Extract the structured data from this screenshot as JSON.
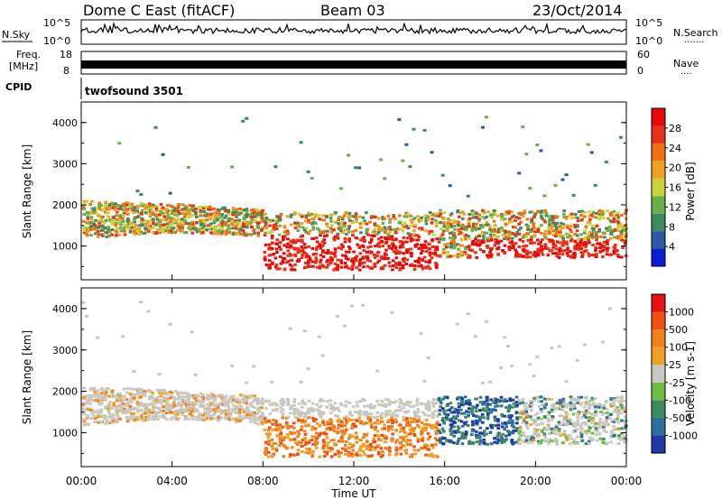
{
  "header": {
    "title": "Dome C East (fitACF)",
    "beam": "Beam 03",
    "date": "23/Oct/2014"
  },
  "status_panels": {
    "nsky_label": "N.Sky",
    "nsearch_label": "N.Search",
    "nsearch_dots": "·······",
    "noise_ticks": [
      "10^5",
      "10^0"
    ],
    "freq_label_1": "Freq.",
    "freq_label_2": "[MHz]",
    "freq_ticks": [
      "18",
      "8"
    ],
    "nave_label": "Nave",
    "nave_dots": "····",
    "nave_ticks": [
      "60",
      "0"
    ],
    "cpid_label": "CPID",
    "cpid_value": "twofsound 3501"
  },
  "chart_data": [
    {
      "type": "heatmap",
      "name": "power",
      "ylabel": "Slant Range [km]",
      "y_ticks": [
        "1000",
        "2000",
        "3000",
        "4000"
      ],
      "colorbar_label": "Power [dB]",
      "colorbar_ticks": [
        "28",
        "24",
        "20",
        "16",
        "12",
        "8",
        "4"
      ],
      "colors": [
        "#0a1fd2",
        "#2a5aa6",
        "#3f8a5e",
        "#6ab04a",
        "#c8d23a",
        "#f0a020",
        "#f07010",
        "#e83018",
        "#e80808"
      ],
      "ylim_km": [
        180,
        4500
      ]
    },
    {
      "type": "heatmap",
      "name": "velocity",
      "ylabel": "Slant Range [km]",
      "y_ticks": [
        "1000",
        "2000",
        "3000",
        "4000"
      ],
      "colorbar_label": "Velocity [m s-1]",
      "colorbar_ticks": [
        "1000",
        "500",
        "100",
        "25",
        "-25",
        "-100",
        "-500",
        "-1000"
      ],
      "colors": [
        "#1f3aa8",
        "#2e6e9e",
        "#3f8a5e",
        "#6cbf3c",
        "#c8c8c0",
        "#f0a020",
        "#f08020",
        "#f05010",
        "#e81010"
      ],
      "ylim_km": [
        180,
        4500
      ]
    }
  ],
  "x_axis": {
    "ticks": [
      "00:00",
      "04:00",
      "08:00",
      "12:00",
      "16:00",
      "20:00",
      "00:00"
    ],
    "label": "Time UT"
  }
}
